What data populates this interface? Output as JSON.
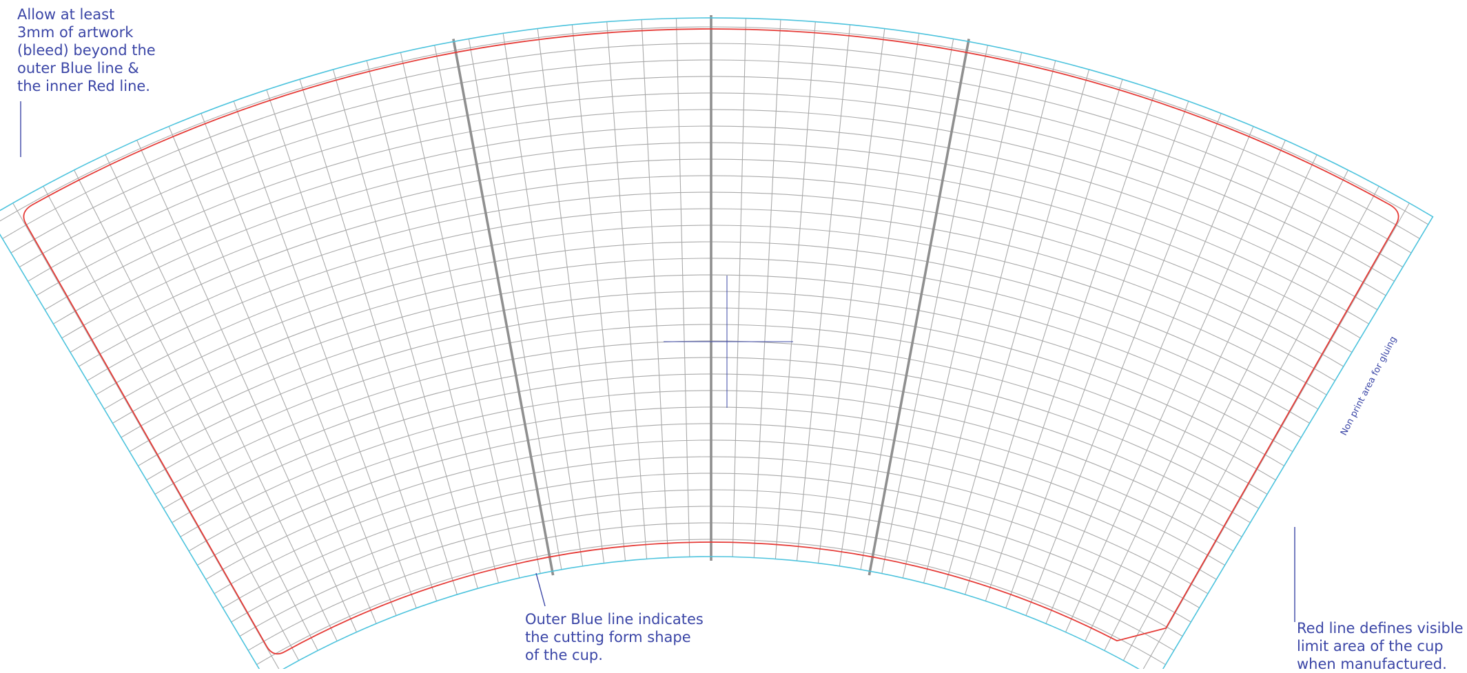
{
  "notes": {
    "bleed": [
      "Allow at least",
      "3mm of artwork",
      "(bleed) beyond the",
      "outer Blue line &",
      "the inner Red line."
    ],
    "blue_line": [
      "Outer Blue line indicates",
      "the cutting form shape",
      "of the cup."
    ],
    "red_line": [
      "Red line defines visible",
      "limit area of the cup",
      "when manufactured."
    ]
  },
  "glue_area_label": "Non print area for gluing",
  "colors": {
    "cut_line": "#4cc3dd",
    "visible_limit_line": "#e53935",
    "grid": "#a9a9a9",
    "major_grid": "#8f8f8f",
    "annotation": "#3a45a6"
  }
}
